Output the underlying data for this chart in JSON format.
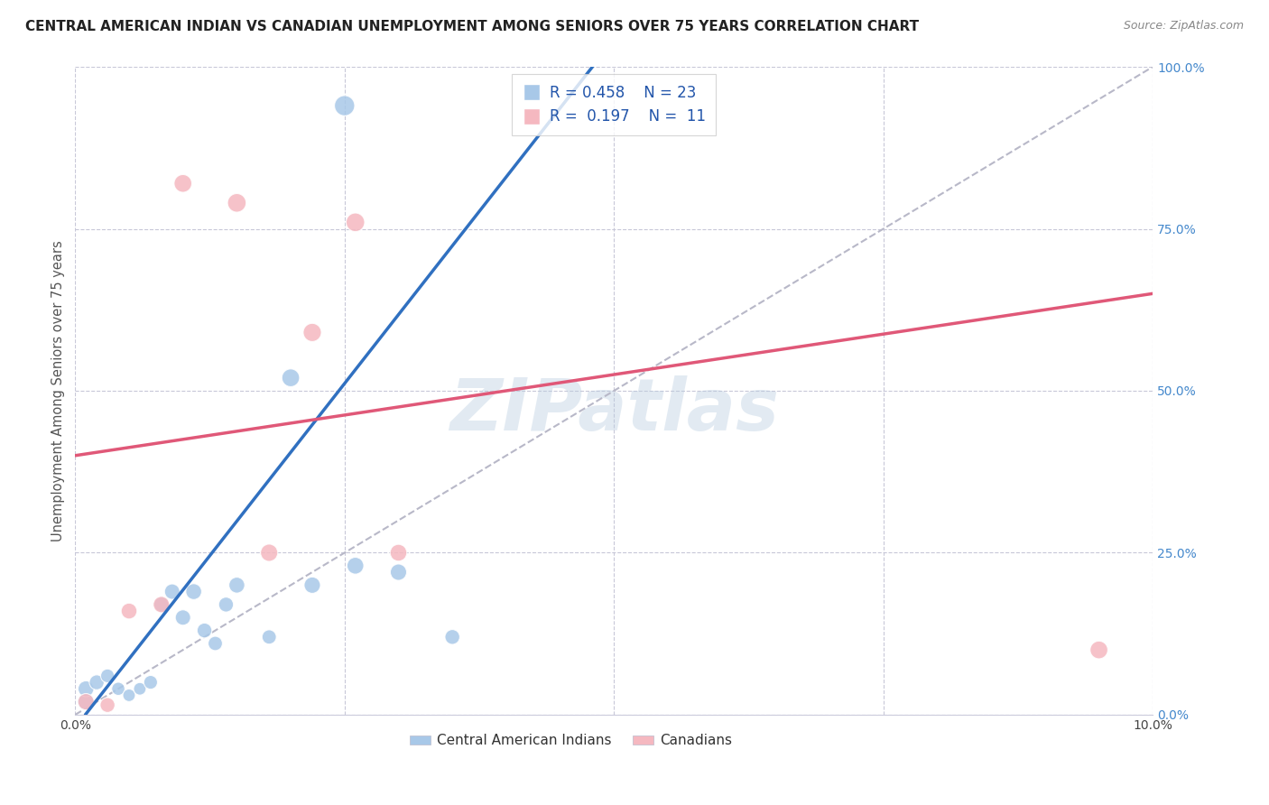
{
  "title": "CENTRAL AMERICAN INDIAN VS CANADIAN UNEMPLOYMENT AMONG SENIORS OVER 75 YEARS CORRELATION CHART",
  "source": "Source: ZipAtlas.com",
  "ylabel": "Unemployment Among Seniors over 75 years",
  "watermark": "ZIPatlas",
  "legend_label_blue": "Central American Indians",
  "legend_label_pink": "Canadians",
  "blue_color": "#a8c8e8",
  "pink_color": "#f5b8c0",
  "blue_line_color": "#3070c0",
  "pink_line_color": "#e05878",
  "dashed_line_color": "#b8b8c8",
  "blue_scatter_x": [
    0.001,
    0.001,
    0.002,
    0.003,
    0.004,
    0.005,
    0.006,
    0.007,
    0.008,
    0.009,
    0.01,
    0.011,
    0.012,
    0.013,
    0.014,
    0.015,
    0.018,
    0.02,
    0.022,
    0.026,
    0.03,
    0.035,
    0.025
  ],
  "blue_scatter_y": [
    0.02,
    0.04,
    0.05,
    0.06,
    0.04,
    0.03,
    0.04,
    0.05,
    0.17,
    0.19,
    0.15,
    0.19,
    0.13,
    0.11,
    0.17,
    0.2,
    0.12,
    0.52,
    0.2,
    0.23,
    0.22,
    0.12,
    0.94
  ],
  "pink_scatter_x": [
    0.001,
    0.003,
    0.005,
    0.008,
    0.01,
    0.015,
    0.018,
    0.022,
    0.026,
    0.03,
    0.095
  ],
  "pink_scatter_y": [
    0.02,
    0.015,
    0.16,
    0.17,
    0.82,
    0.79,
    0.25,
    0.59,
    0.76,
    0.25,
    0.1
  ],
  "blue_sizes": [
    180,
    160,
    140,
    120,
    110,
    100,
    100,
    120,
    140,
    150,
    150,
    160,
    140,
    130,
    140,
    160,
    130,
    200,
    170,
    180,
    170,
    140,
    260
  ],
  "pink_sizes": [
    170,
    140,
    160,
    170,
    200,
    220,
    190,
    210,
    220,
    180,
    200
  ],
  "blue_line_x0": 0.0,
  "blue_line_y0": -0.02,
  "blue_line_x1": 0.048,
  "blue_line_y1": 1.0,
  "pink_line_x0": 0.0,
  "pink_line_y0": 0.4,
  "pink_line_x1": 0.1,
  "pink_line_y1": 0.65,
  "dash_line_x0": 0.0,
  "dash_line_y0": 0.0,
  "dash_line_x1": 0.1,
  "dash_line_y1": 1.0,
  "xlim": [
    0.0,
    0.1
  ],
  "ylim": [
    0.0,
    1.0
  ],
  "background_color": "#ffffff",
  "grid_color": "#c8c8d8"
}
